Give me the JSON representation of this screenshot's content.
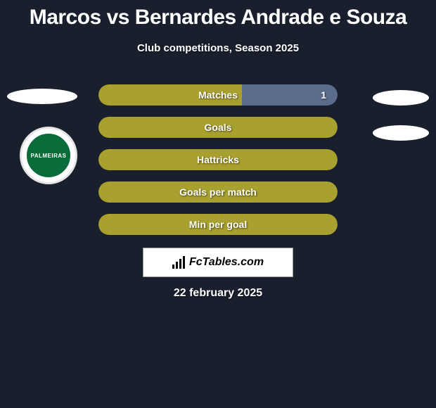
{
  "title": "Marcos vs Bernardes Andrade e Souza",
  "subtitle": "Club competitions, Season 2025",
  "club_badge_text": "PALMEIRAS",
  "stats": [
    {
      "label": "Matches",
      "left_color": "#a8a02f",
      "right_color": "#5a6b8c",
      "left_width_pct": 60,
      "right_width_pct": 40,
      "right_value": "1"
    },
    {
      "label": "Goals",
      "left_color": "#a8a02f",
      "right_color": "#a8a02f",
      "left_width_pct": 100,
      "right_width_pct": 0,
      "right_value": ""
    },
    {
      "label": "Hattricks",
      "left_color": "#a8a02f",
      "right_color": "#a8a02f",
      "left_width_pct": 100,
      "right_width_pct": 0,
      "right_value": ""
    },
    {
      "label": "Goals per match",
      "left_color": "#a8a02f",
      "right_color": "#a8a02f",
      "left_width_pct": 100,
      "right_width_pct": 0,
      "right_value": ""
    },
    {
      "label": "Min per goal",
      "left_color": "#a8a02f",
      "right_color": "#a8a02f",
      "left_width_pct": 100,
      "right_width_pct": 0,
      "right_value": ""
    }
  ],
  "brand_label": "FcTables.com",
  "date_text": "22 february 2025",
  "colors": {
    "background": "#1a1f2e",
    "text_primary": "#ffffff",
    "bar_olive": "#a8a02f",
    "bar_blue": "#5a6b8c",
    "badge_green": "#0a6b3a"
  }
}
